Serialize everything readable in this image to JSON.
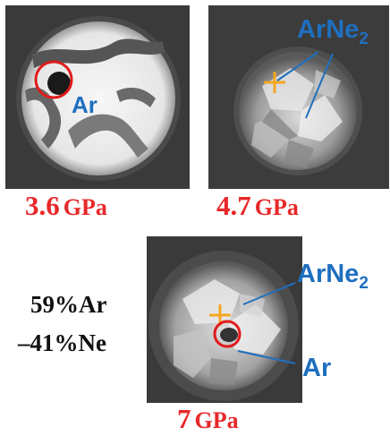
{
  "panels": [
    {
      "pressure_value": "3.6",
      "pressure_unit": "GPa",
      "labels": [
        "Ar"
      ]
    },
    {
      "pressure_value": "4.7",
      "pressure_unit": "GPa",
      "labels": [
        "ArNe",
        "2"
      ]
    },
    {
      "pressure_value": "7",
      "pressure_unit": "GPa",
      "labels": [
        "ArNe",
        "2",
        "Ar"
      ]
    }
  ],
  "composition": {
    "line1": "59%Ar",
    "line2": "–41%Ne"
  },
  "colors": {
    "pressure_text": "#e8282a",
    "label_text": "#1f6fbf",
    "marker_cross": "#f5a623",
    "marker_circle": "#e01b1b",
    "pointer_line": "#1f6fbf"
  }
}
